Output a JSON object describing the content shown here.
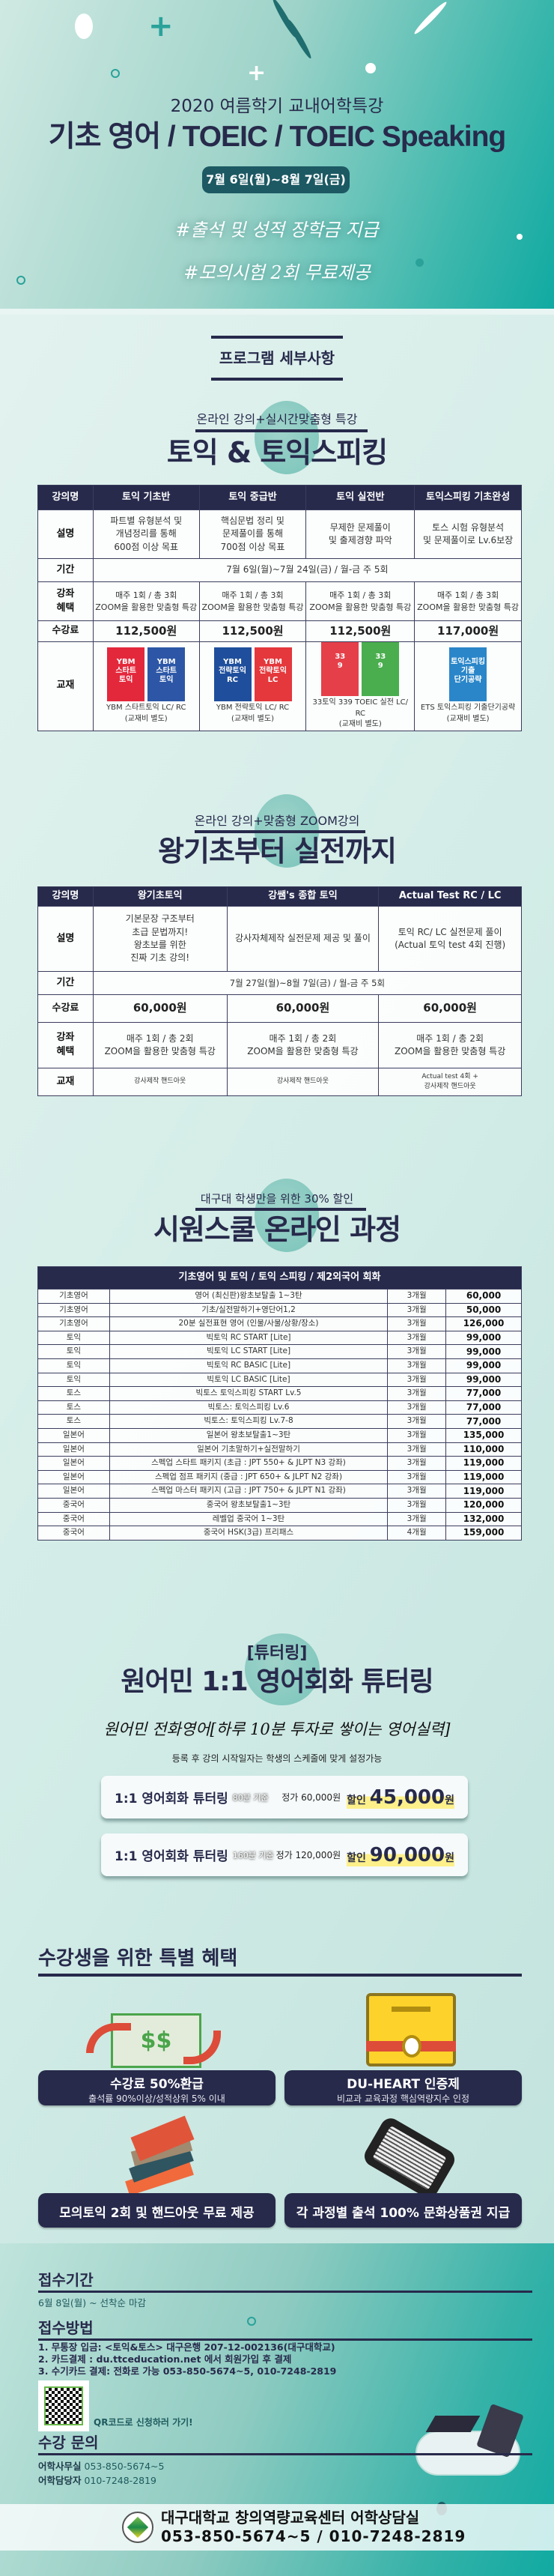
{
  "hero": {
    "subtitle": "2020 여름학기 교내어학특강",
    "title": "기초 영어 / TOEIC / TOEIC Speaking",
    "date": "7월 6일(월)~8월 7일(금)",
    "hashtags": [
      "#출석 및 성적 장학금 지급",
      "#모의시험 2회 무료제공"
    ]
  },
  "program_label": "프로그램 세부사항",
  "toeic": {
    "subtitle": "온라인 강의+실시간맞춤형 특강",
    "title": "토익 & 토익스피킹",
    "headers": [
      "강의명",
      "토익 기초반",
      "토익 중급반",
      "토익 실전반",
      "토익스피킹 기초완성"
    ],
    "row_labels": {
      "desc": "설명",
      "period": "기간",
      "benefit": "강좌\n혜택",
      "fee": "수강료",
      "book": "교재"
    },
    "desc": [
      "파트별 유형분석 및\n개념정리를 통해\n600점 이상 목표",
      "핵심문법 정리 및\n문제풀이를 통해\n700점 이상 목표",
      "무제한 문제풀이\n및 출제경향 파악",
      "토스 시험 유형분석\n및 문제풀이로 Lv.6보장"
    ],
    "period": "7월 6일(월)~7월 24일(금) / 월-금  주 5회",
    "benefit": [
      "매주 1회 / 총 3회\nZOOM을 활용한 맞춤형 특강",
      "매주 1회 / 총 3회\nZOOM을 활용한 맞춤형 특강",
      "매주 1회 / 총 3회\nZOOM을 활용한 맞춤형 특강",
      "매주 1회 / 총 3회\nZOOM을 활용한 맞춤형 특강"
    ],
    "fee": [
      "112,500원",
      "112,500원",
      "112,500원",
      "117,000원"
    ],
    "books": [
      {
        "covers": [
          {
            "label": "YBM\n스타트\n토익",
            "color": "#e4283c"
          },
          {
            "label": "YBM\n스타트\n토익",
            "color": "#2d57a6"
          }
        ],
        "caption": "YBM 스타트토익 LC/ RC\n(교재비 별도)"
      },
      {
        "covers": [
          {
            "label": "YBM\n전략토익\nRC",
            "color": "#1f4f9c"
          },
          {
            "label": "YBM\n전략토익\nLC",
            "color": "#e4383c"
          }
        ],
        "caption": "YBM 전략토익 LC/ RC\n(교재비 별도)"
      },
      {
        "covers": [
          {
            "label": "33\n9",
            "color": "#e5404a"
          },
          {
            "label": "33\n9",
            "color": "#4aae4e"
          }
        ],
        "caption": "33토익 339 TOEIC 실전 LC/ RC\n(교재비 별도)"
      },
      {
        "covers": [
          {
            "label": "토익스피킹\n기출\n단기공략",
            "color": "#2a86c9"
          }
        ],
        "caption": "ETS 토익스피킹 기출단기공략\n(교재비 별도)"
      }
    ]
  },
  "basic": {
    "subtitle": "온라인 강의+맞춤형 ZOOM강의",
    "title": "왕기초부터 실전까지",
    "headers": [
      "강의명",
      "왕기초토익",
      "강쌤's 종합 토익",
      "Actual Test RC / LC"
    ],
    "row_labels": {
      "desc": "설명",
      "period": "기간",
      "fee": "수강료",
      "benefit": "강좌\n혜택",
      "book": "교재"
    },
    "desc": [
      "기본문장 구조부터\n초급 문법까지!\n왕초보를 위한\n진짜 기초 강의!",
      "강사자체제작 실전문제 제공 및 풀이",
      "토익 RC/ LC 실전문제 풀이\n(Actual 토익 test 4회 진행)"
    ],
    "period": "7월 27일(월)~8월 7일(금) / 월-금  주 5회",
    "fee": [
      "60,000원",
      "60,000원",
      "60,000원"
    ],
    "benefit": [
      "매주 1회 / 총 2회\nZOOM을 활용한 맞춤형 특강",
      "매주 1회 / 총 2회\nZOOM을 활용한 맞춤형 특강",
      "매주 1회 / 총 2회\nZOOM을 활용한 맞춤형 특강"
    ],
    "book": [
      "강사제작 핸드아웃",
      "강사제작 핸드아웃",
      "Actual test 4회 +\n강사제작 핸드아웃"
    ]
  },
  "siwon": {
    "subtitle": "대구대 학생만을 위한 30% 할인",
    "title": "시원스쿨 온라인 과정",
    "table_header": "기초영어 및 토익 / 토익 스피킹 / 제2외국어 회화",
    "rows": [
      [
        "기초영어",
        "영어 (최신판)왕초보탈출 1~3탄",
        "3개월",
        "60,000"
      ],
      [
        "기초영어",
        "기초/실전말하기+영단어1,2",
        "3개월",
        "50,000"
      ],
      [
        "기초영어",
        "20분 실전표현 영어 (인물/사물/상황/장소)",
        "3개월",
        "126,000"
      ],
      [
        "토익",
        "빅토익 RC START [Lite]",
        "3개월",
        "99,000"
      ],
      [
        "토익",
        "빅토익 LC START [Lite]",
        "3개월",
        "99,000"
      ],
      [
        "토익",
        "빅토익 RC BASIC [Lite]",
        "3개월",
        "99,000"
      ],
      [
        "토익",
        "빅토익 LC BASIC [Lite]",
        "3개월",
        "99,000"
      ],
      [
        "토스",
        "빅토스 토익스피킹 START Lv.5",
        "3개월",
        "77,000"
      ],
      [
        "토스",
        "빅토스: 토익스피킹 Lv.6",
        "3개월",
        "77,000"
      ],
      [
        "토스",
        "빅토스: 토익스피킹 Lv.7-8",
        "3개월",
        "77,000"
      ],
      [
        "일본어",
        "일본어 왕초보탈출1~3탄",
        "3개월",
        "135,000"
      ],
      [
        "일본어",
        "일본어 기초말하기+실전말하기",
        "3개월",
        "110,000"
      ],
      [
        "일본어",
        "스펙업 스타트 패키지 (초급 : JPT 550+ & JLPT N3 강좌)",
        "3개월",
        "119,000"
      ],
      [
        "일본어",
        "스펙업 점프 패키지 (중급 : JPT 650+ & JLPT N2 강좌)",
        "3개월",
        "119,000"
      ],
      [
        "일본어",
        "스펙업 마스터 패키지 (고급 : JPT 750+ & JLPT N1 강좌)",
        "3개월",
        "119,000"
      ],
      [
        "중국어",
        "중국어 왕초보탈출1~3탄",
        "3개월",
        "120,000"
      ],
      [
        "중국어",
        "레벨업 중국어 1~3탄",
        "3개월",
        "132,000"
      ],
      [
        "중국어",
        "중국어 HSK(3급) 프리패스",
        "4개월",
        "159,000"
      ]
    ]
  },
  "tutoring": {
    "tag": "[튜터링]",
    "title": "원어민 1:1 영어회화 튜터링",
    "tagline": "원어민 전화영어[하루 10분 투자로 쌓이는 영어실력]",
    "note": "등록 후 강의 시작일자는 학생의 스케줄에 맞게 설정가능",
    "plans": [
      {
        "name": "1:1 영어회화 튜터링",
        "minutes": "80분 기준",
        "regular": "정가 60,000원",
        "discount_label": "할인",
        "price": "45,000",
        "unit": "원"
      },
      {
        "name": "1:1 영어회화 튜터링",
        "minutes": "160분 기준",
        "regular": "정가 120,000원",
        "discount_label": "할인",
        "price": "90,000",
        "unit": "원"
      }
    ]
  },
  "benefits": {
    "title": "수강생을 위한 특별 혜택",
    "items": [
      {
        "icon": "money-refund-icon",
        "title": "수강료 50%환급",
        "desc": "출석률 90%이상/성적상위 5% 이내"
      },
      {
        "icon": "certificate-icon",
        "title": "DU-HEART 인증제",
        "desc": "비교과 교육과정 핵심역량지수 인정"
      },
      {
        "icon": "books-icon",
        "title": "모의토익 2회 및 핸드아웃 무료 제공",
        "desc": ""
      },
      {
        "icon": "tablet-icon",
        "title": "각 과정별 출석 100% 문화상품권 지급",
        "desc": ""
      }
    ]
  },
  "info": {
    "period_title": "접수기간",
    "period": "6월 8일(월) ~ 선착순 마감",
    "method_title": "접수방법",
    "methods": [
      "1. 무통장 입금: <토익&토스> 대구은행 207-12-002136(대구대학교)",
      "2. 카드결제 : du.ttceducation.net 에서 회원가입 후 결제",
      "3. 수기카드 결제: 전화로 가능 053-850-5674~5, 010-7248-2819"
    ],
    "qr_text": "QR코드로 신청하러 가기!",
    "contact_title": "수강 문의",
    "contacts": [
      {
        "label": "어학사무실",
        "value": "053-850-5674~5"
      },
      {
        "label": "어학담당자",
        "value": "010-7248-2819"
      }
    ]
  },
  "footer": {
    "org": "대구대학교 창의역량교육센터 어학상담실",
    "phones": "053-850-5674~5 / 010-7248-2819"
  },
  "colors": {
    "navy": "#272a4b",
    "teal": "#10aaa2",
    "pill": "#1c5963",
    "highlight": "#fdf08a"
  }
}
